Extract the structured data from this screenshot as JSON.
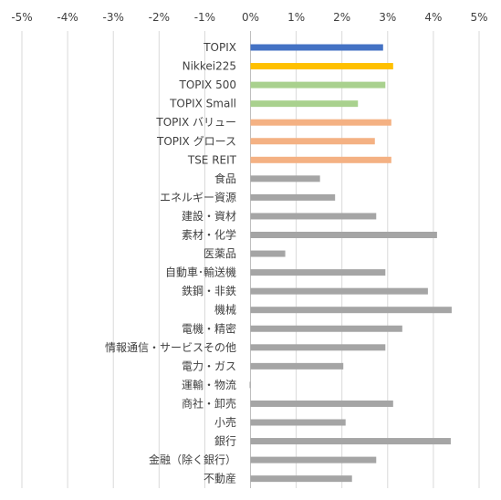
{
  "chart_data": {
    "type": "bar",
    "orientation": "horizontal",
    "xlim": [
      -5,
      5
    ],
    "x_ticks": [
      -5,
      -4,
      -3,
      -2,
      -1,
      0,
      1,
      2,
      3,
      4,
      5
    ],
    "x_tick_labels": [
      "-5%",
      "-4%",
      "-3%",
      "-2%",
      "-1%",
      "0%",
      "1%",
      "2%",
      "3%",
      "4%",
      "5%"
    ],
    "x_axis_position": "top",
    "grid": true,
    "legend": "none",
    "categories": [
      "TOPIX",
      "Nikkei225",
      "TOPIX 500",
      "TOPIX Small",
      "TOPIX バリュー",
      "TOPIX グロース",
      "TSE REIT",
      "食品",
      "エネルギー資源",
      "建設・資材",
      "素材・化学",
      "医薬品",
      "自動車･輸送機",
      "鉄鋼・非鉄",
      "機械",
      "電機・精密",
      "情報通信・サービスその他",
      "電力・ガス",
      "運輸・物流",
      "商社・卸売",
      "小売",
      "銀行",
      "金融（除く銀行）",
      "不動産"
    ],
    "values": [
      2.9,
      3.12,
      2.95,
      2.35,
      3.08,
      2.72,
      3.08,
      1.52,
      1.85,
      2.75,
      4.08,
      0.76,
      2.95,
      3.88,
      4.4,
      3.32,
      2.95,
      2.03,
      -0.02,
      3.12,
      2.08,
      4.38,
      2.75,
      2.22
    ],
    "bar_colors": [
      "#4472c4",
      "#ffc000",
      "#a9d18e",
      "#a9d18e",
      "#f4b183",
      "#f4b183",
      "#f4b183",
      "#a5a5a5",
      "#a5a5a5",
      "#a5a5a5",
      "#a5a5a5",
      "#a5a5a5",
      "#a5a5a5",
      "#a5a5a5",
      "#a5a5a5",
      "#a5a5a5",
      "#a5a5a5",
      "#a5a5a5",
      "#a5a5a5",
      "#a5a5a5",
      "#a5a5a5",
      "#a5a5a5",
      "#a5a5a5",
      "#a5a5a5"
    ]
  }
}
